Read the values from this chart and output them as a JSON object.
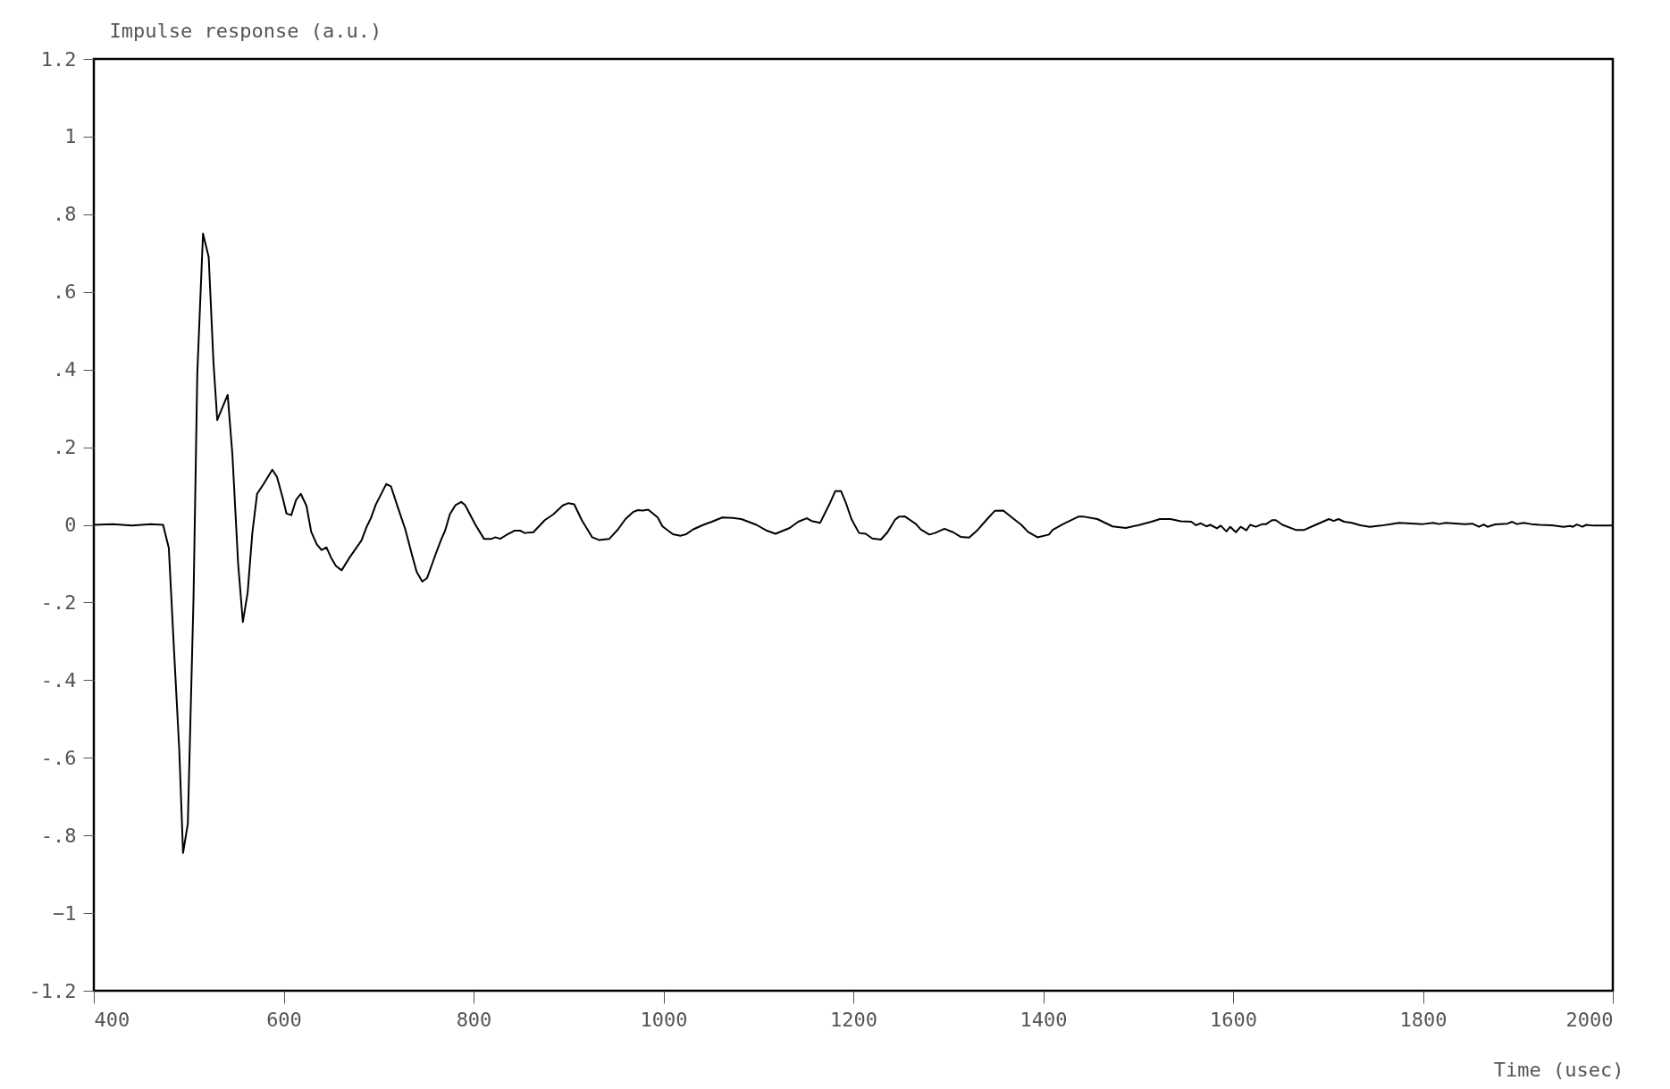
{
  "chart_data": {
    "type": "line",
    "xlabel": "Time (usec)",
    "ylabel": "Impulse response (a.u.)",
    "x": [
      400,
      420,
      440,
      460,
      473,
      479,
      484,
      490,
      494,
      499,
      505,
      509,
      515,
      521,
      526,
      530,
      541,
      546,
      552,
      557,
      562,
      567,
      572,
      579,
      588,
      593,
      599,
      603,
      608,
      613,
      618,
      624,
      629,
      635,
      640,
      645,
      650,
      655,
      661,
      670,
      682,
      687,
      692,
      697,
      708,
      713,
      720,
      728,
      735,
      740,
      746,
      751,
      760,
      766,
      770,
      775,
      781,
      787,
      791,
      802,
      811,
      819,
      823,
      828,
      834,
      843,
      849,
      854,
      863,
      875,
      884,
      894,
      900,
      906,
      914,
      925,
      932,
      943,
      952,
      960,
      968,
      973,
      978,
      984,
      994,
      999,
      1010,
      1018,
      1024,
      1031,
      1042,
      1051,
      1062,
      1073,
      1082,
      1098,
      1109,
      1118,
      1133,
      1142,
      1151,
      1156,
      1165,
      1175,
      1181,
      1187,
      1192,
      1198,
      1206,
      1213,
      1220,
      1229,
      1236,
      1244,
      1248,
      1254,
      1266,
      1271,
      1280,
      1286,
      1296,
      1305,
      1313,
      1322,
      1331,
      1341,
      1349,
      1358,
      1367,
      1377,
      1384,
      1394,
      1406,
      1410,
      1421,
      1437,
      1443,
      1457,
      1473,
      1487,
      1500,
      1514,
      1523,
      1534,
      1545,
      1556,
      1561,
      1566,
      1572,
      1576,
      1583,
      1587,
      1593,
      1597,
      1603,
      1608,
      1614,
      1618,
      1624,
      1631,
      1635,
      1641,
      1645,
      1652,
      1666,
      1675,
      1687,
      1701,
      1706,
      1711,
      1717,
      1725,
      1734,
      1744,
      1756,
      1769,
      1775,
      1800,
      1811,
      1817,
      1824,
      1844,
      1852,
      1859,
      1864,
      1868,
      1876,
      1889,
      1894,
      1899,
      1906,
      1914,
      1923,
      1936,
      1948,
      1955,
      1958,
      1962,
      1968,
      1972,
      1979,
      1998,
      2000
    ],
    "series": [
      {
        "color": "#000000",
        "values": [
          0,
          0.002,
          -0.002,
          0.002,
          0,
          -0.06,
          -0.3,
          -0.58,
          -0.845,
          -0.77,
          -0.19,
          0.39,
          0.75,
          0.69,
          0.42,
          0.27,
          0.335,
          0.18,
          -0.1,
          -0.25,
          -0.175,
          -0.02,
          0.08,
          0.106,
          0.142,
          0.123,
          0.069,
          0.029,
          0.025,
          0.064,
          0.08,
          0.049,
          -0.018,
          -0.051,
          -0.065,
          -0.058,
          -0.085,
          -0.106,
          -0.117,
          -0.082,
          -0.04,
          -0.007,
          0.018,
          0.052,
          0.105,
          0.099,
          0.047,
          -0.011,
          -0.076,
          -0.121,
          -0.146,
          -0.137,
          -0.076,
          -0.037,
          -0.015,
          0.027,
          0.051,
          0.059,
          0.051,
          0,
          -0.036,
          -0.036,
          -0.032,
          -0.036,
          -0.027,
          -0.015,
          -0.015,
          -0.021,
          -0.019,
          0.012,
          0.027,
          0.05,
          0.056,
          0.053,
          0.012,
          -0.032,
          -0.039,
          -0.036,
          -0.012,
          0.015,
          0.033,
          0.038,
          0.037,
          0.039,
          0.019,
          -0.004,
          -0.024,
          -0.028,
          -0.024,
          -0.012,
          0,
          0.008,
          0.019,
          0.018,
          0.015,
          0,
          -0.015,
          -0.023,
          -0.008,
          0.008,
          0.017,
          0.01,
          0.005,
          0.054,
          0.087,
          0.087,
          0.058,
          0.015,
          -0.021,
          -0.023,
          -0.035,
          -0.038,
          -0.019,
          0.013,
          0.021,
          0.022,
          0.002,
          -0.012,
          -0.025,
          -0.021,
          -0.01,
          -0.019,
          -0.031,
          -0.033,
          -0.013,
          0.015,
          0.036,
          0.037,
          0.019,
          0,
          -0.018,
          -0.032,
          -0.025,
          -0.013,
          0.002,
          0.021,
          0.021,
          0.015,
          -0.004,
          -0.008,
          -0.001,
          0.008,
          0.015,
          0.015,
          0.009,
          0.008,
          -0.001,
          0.004,
          -0.004,
          0,
          -0.009,
          -0.002,
          -0.017,
          -0.005,
          -0.019,
          -0.005,
          -0.014,
          0,
          -0.005,
          0.002,
          0.002,
          0.012,
          0.012,
          0,
          -0.013,
          -0.013,
          0,
          0.015,
          0.01,
          0.015,
          0.008,
          0.005,
          -0.001,
          -0.005,
          -0.002,
          0.003,
          0.005,
          0.002,
          0.005,
          0.002,
          0.005,
          0.002,
          0.003,
          -0.005,
          0.001,
          -0.005,
          0.001,
          0.003,
          0.008,
          0.002,
          0.005,
          0.002,
          0,
          -0.001,
          -0.005,
          -0.003,
          -0.005,
          0.001,
          -0.005,
          0,
          -0.002,
          -0.002,
          0
        ]
      }
    ],
    "xlim": [
      400,
      2000
    ],
    "xticks": [
      400,
      600,
      800,
      1000,
      1200,
      1400,
      1600,
      1800,
      2000
    ],
    "ylim": [
      -1.2,
      1.2
    ],
    "yticks": [
      {
        "value": -1.2,
        "label": "-1.2"
      },
      -1,
      {
        "value": -0.8,
        "label": "-.8"
      },
      {
        "value": -0.6,
        "label": "-.6"
      },
      {
        "value": -0.4,
        "label": "-.4"
      },
      {
        "value": -0.2,
        "label": "-.2"
      },
      0,
      {
        "value": 0.2,
        "label": ".2"
      },
      {
        "value": 0.4,
        "label": ".4"
      },
      {
        "value": 0.6,
        "label": ".6"
      },
      {
        "value": 0.8,
        "label": ".8"
      },
      1,
      {
        "value": 1.2,
        "label": "1.2"
      }
    ]
  }
}
